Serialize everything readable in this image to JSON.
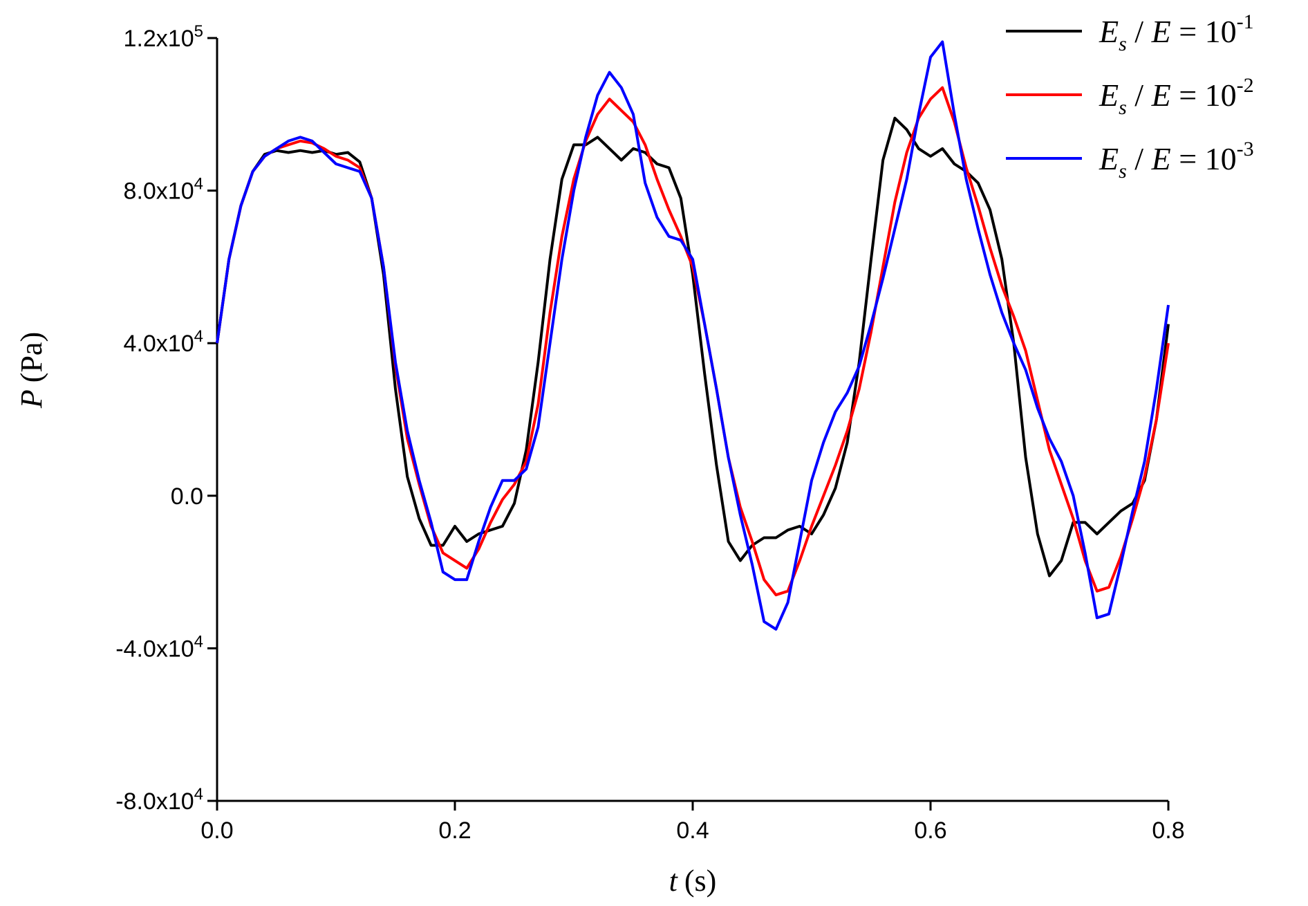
{
  "chart_data": {
    "type": "line",
    "xlabel": {
      "var": "t",
      "unit": "(s)"
    },
    "ylabel": {
      "var": "P",
      "unit": "(Pa)"
    },
    "xlim": [
      0,
      0.8
    ],
    "ylim": [
      -80000,
      120000
    ],
    "grid": false,
    "legend_placement": "top-right",
    "x_ticks": [
      {
        "value": 0.0,
        "label": "0.0"
      },
      {
        "value": 0.2,
        "label": "0.2"
      },
      {
        "value": 0.4,
        "label": "0.4"
      },
      {
        "value": 0.6,
        "label": "0.6"
      },
      {
        "value": 0.8,
        "label": "0.8"
      }
    ],
    "y_ticks": [
      {
        "value": 120000,
        "label": "1.2x10",
        "exp": "5"
      },
      {
        "value": 80000,
        "label": "8.0x10",
        "exp": "4"
      },
      {
        "value": 40000,
        "label": "4.0x10",
        "exp": "4"
      },
      {
        "value": 0,
        "label": "0.0",
        "exp": ""
      },
      {
        "value": -40000,
        "label": "-4.0x10",
        "exp": "4"
      },
      {
        "value": -80000,
        "label": "-8.0x10",
        "exp": "4"
      }
    ],
    "series": [
      {
        "name": "E_s / E = 10^-1",
        "legend": {
          "a": "E",
          "sub": "s",
          "mid": " / E = 10",
          "exp": "-1"
        },
        "color": "#000000",
        "points": [
          [
            0.0,
            40000
          ],
          [
            0.01,
            62000
          ],
          [
            0.02,
            76000
          ],
          [
            0.03,
            85000
          ],
          [
            0.04,
            89500
          ],
          [
            0.05,
            90500
          ],
          [
            0.06,
            90000
          ],
          [
            0.07,
            90500
          ],
          [
            0.08,
            90000
          ],
          [
            0.09,
            90500
          ],
          [
            0.1,
            89500
          ],
          [
            0.11,
            90000
          ],
          [
            0.12,
            87500
          ],
          [
            0.13,
            78000
          ],
          [
            0.14,
            58000
          ],
          [
            0.15,
            28000
          ],
          [
            0.16,
            5000
          ],
          [
            0.17,
            -6000
          ],
          [
            0.18,
            -13000
          ],
          [
            0.19,
            -13000
          ],
          [
            0.2,
            -8000
          ],
          [
            0.21,
            -12000
          ],
          [
            0.22,
            -10000
          ],
          [
            0.23,
            -9000
          ],
          [
            0.24,
            -8000
          ],
          [
            0.25,
            -2000
          ],
          [
            0.26,
            12000
          ],
          [
            0.27,
            35000
          ],
          [
            0.28,
            62000
          ],
          [
            0.29,
            83000
          ],
          [
            0.3,
            92000
          ],
          [
            0.31,
            92000
          ],
          [
            0.32,
            94000
          ],
          [
            0.33,
            91000
          ],
          [
            0.34,
            88000
          ],
          [
            0.35,
            91000
          ],
          [
            0.36,
            90000
          ],
          [
            0.37,
            87000
          ],
          [
            0.38,
            86000
          ],
          [
            0.39,
            78000
          ],
          [
            0.4,
            58000
          ],
          [
            0.41,
            32000
          ],
          [
            0.42,
            8000
          ],
          [
            0.43,
            -12000
          ],
          [
            0.44,
            -17000
          ],
          [
            0.45,
            -13000
          ],
          [
            0.46,
            -11000
          ],
          [
            0.47,
            -11000
          ],
          [
            0.48,
            -9000
          ],
          [
            0.49,
            -8000
          ],
          [
            0.5,
            -10000
          ],
          [
            0.51,
            -5000
          ],
          [
            0.52,
            2000
          ],
          [
            0.53,
            14000
          ],
          [
            0.54,
            35000
          ],
          [
            0.55,
            62000
          ],
          [
            0.56,
            88000
          ],
          [
            0.57,
            99000
          ],
          [
            0.58,
            96000
          ],
          [
            0.59,
            91000
          ],
          [
            0.6,
            89000
          ],
          [
            0.61,
            91000
          ],
          [
            0.62,
            87000
          ],
          [
            0.63,
            85000
          ],
          [
            0.64,
            82000
          ],
          [
            0.65,
            75000
          ],
          [
            0.66,
            62000
          ],
          [
            0.67,
            40000
          ],
          [
            0.68,
            10000
          ],
          [
            0.69,
            -10000
          ],
          [
            0.7,
            -21000
          ],
          [
            0.71,
            -17000
          ],
          [
            0.72,
            -7000
          ],
          [
            0.73,
            -7000
          ],
          [
            0.74,
            -10000
          ],
          [
            0.75,
            -7000
          ],
          [
            0.76,
            -4000
          ],
          [
            0.77,
            -2000
          ],
          [
            0.78,
            4000
          ],
          [
            0.79,
            20000
          ],
          [
            0.8,
            45000
          ]
        ]
      },
      {
        "name": "E_s / E = 10^-2",
        "legend": {
          "a": "E",
          "sub": "s",
          "mid": " / E = 10",
          "exp": "-2"
        },
        "color": "#ff0000",
        "points": [
          [
            0.0,
            40000
          ],
          [
            0.01,
            62000
          ],
          [
            0.02,
            76000
          ],
          [
            0.03,
            85000
          ],
          [
            0.04,
            89000
          ],
          [
            0.05,
            91000
          ],
          [
            0.06,
            92000
          ],
          [
            0.07,
            93000
          ],
          [
            0.08,
            92500
          ],
          [
            0.09,
            91000
          ],
          [
            0.1,
            89000
          ],
          [
            0.11,
            88000
          ],
          [
            0.12,
            86000
          ],
          [
            0.13,
            78000
          ],
          [
            0.14,
            60000
          ],
          [
            0.15,
            34000
          ],
          [
            0.16,
            15000
          ],
          [
            0.17,
            3000
          ],
          [
            0.18,
            -8000
          ],
          [
            0.19,
            -15000
          ],
          [
            0.2,
            -17000
          ],
          [
            0.21,
            -19000
          ],
          [
            0.22,
            -14000
          ],
          [
            0.23,
            -7000
          ],
          [
            0.24,
            -1000
          ],
          [
            0.25,
            3000
          ],
          [
            0.26,
            9000
          ],
          [
            0.27,
            24000
          ],
          [
            0.28,
            48000
          ],
          [
            0.29,
            68000
          ],
          [
            0.3,
            83000
          ],
          [
            0.31,
            93000
          ],
          [
            0.32,
            100000
          ],
          [
            0.33,
            104000
          ],
          [
            0.34,
            101000
          ],
          [
            0.35,
            98000
          ],
          [
            0.36,
            92000
          ],
          [
            0.37,
            83000
          ],
          [
            0.38,
            75000
          ],
          [
            0.39,
            68000
          ],
          [
            0.4,
            60000
          ],
          [
            0.41,
            45000
          ],
          [
            0.42,
            28000
          ],
          [
            0.43,
            10000
          ],
          [
            0.44,
            -3000
          ],
          [
            0.45,
            -12000
          ],
          [
            0.46,
            -22000
          ],
          [
            0.47,
            -26000
          ],
          [
            0.48,
            -25000
          ],
          [
            0.49,
            -17000
          ],
          [
            0.5,
            -8000
          ],
          [
            0.51,
            0
          ],
          [
            0.52,
            8000
          ],
          [
            0.53,
            17000
          ],
          [
            0.54,
            28000
          ],
          [
            0.55,
            43000
          ],
          [
            0.56,
            60000
          ],
          [
            0.57,
            77000
          ],
          [
            0.58,
            90000
          ],
          [
            0.59,
            99000
          ],
          [
            0.6,
            104000
          ],
          [
            0.61,
            107000
          ],
          [
            0.62,
            98000
          ],
          [
            0.63,
            86000
          ],
          [
            0.64,
            76000
          ],
          [
            0.65,
            65000
          ],
          [
            0.66,
            55000
          ],
          [
            0.67,
            47000
          ],
          [
            0.68,
            38000
          ],
          [
            0.69,
            25000
          ],
          [
            0.7,
            12000
          ],
          [
            0.71,
            3000
          ],
          [
            0.72,
            -6000
          ],
          [
            0.73,
            -17000
          ],
          [
            0.74,
            -25000
          ],
          [
            0.75,
            -24000
          ],
          [
            0.76,
            -16000
          ],
          [
            0.77,
            -6000
          ],
          [
            0.78,
            5000
          ],
          [
            0.79,
            20000
          ],
          [
            0.8,
            40000
          ]
        ]
      },
      {
        "name": "E_s / E = 10^-3",
        "legend": {
          "a": "E",
          "sub": "s",
          "mid": " / E = 10",
          "exp": "-3"
        },
        "color": "#0000ff",
        "points": [
          [
            0.0,
            40000
          ],
          [
            0.01,
            62000
          ],
          [
            0.02,
            76000
          ],
          [
            0.03,
            85000
          ],
          [
            0.04,
            89000
          ],
          [
            0.05,
            91000
          ],
          [
            0.06,
            93000
          ],
          [
            0.07,
            94000
          ],
          [
            0.08,
            93000
          ],
          [
            0.09,
            90000
          ],
          [
            0.1,
            87000
          ],
          [
            0.11,
            86000
          ],
          [
            0.12,
            85000
          ],
          [
            0.13,
            78000
          ],
          [
            0.14,
            60000
          ],
          [
            0.15,
            35000
          ],
          [
            0.16,
            17000
          ],
          [
            0.17,
            4000
          ],
          [
            0.18,
            -7000
          ],
          [
            0.19,
            -20000
          ],
          [
            0.2,
            -22000
          ],
          [
            0.21,
            -22000
          ],
          [
            0.22,
            -12000
          ],
          [
            0.23,
            -3000
          ],
          [
            0.24,
            4000
          ],
          [
            0.25,
            4000
          ],
          [
            0.26,
            7000
          ],
          [
            0.27,
            18000
          ],
          [
            0.28,
            40000
          ],
          [
            0.29,
            62000
          ],
          [
            0.3,
            80000
          ],
          [
            0.31,
            94000
          ],
          [
            0.32,
            105000
          ],
          [
            0.33,
            111000
          ],
          [
            0.34,
            107000
          ],
          [
            0.35,
            100000
          ],
          [
            0.36,
            82000
          ],
          [
            0.37,
            73000
          ],
          [
            0.38,
            68000
          ],
          [
            0.39,
            67000
          ],
          [
            0.4,
            62000
          ],
          [
            0.41,
            45000
          ],
          [
            0.42,
            28000
          ],
          [
            0.43,
            10000
          ],
          [
            0.44,
            -5000
          ],
          [
            0.45,
            -18000
          ],
          [
            0.46,
            -33000
          ],
          [
            0.47,
            -35000
          ],
          [
            0.48,
            -28000
          ],
          [
            0.49,
            -12000
          ],
          [
            0.5,
            4000
          ],
          [
            0.51,
            14000
          ],
          [
            0.52,
            22000
          ],
          [
            0.53,
            27000
          ],
          [
            0.54,
            34000
          ],
          [
            0.55,
            45000
          ],
          [
            0.56,
            57000
          ],
          [
            0.57,
            70000
          ],
          [
            0.58,
            83000
          ],
          [
            0.59,
            100000
          ],
          [
            0.6,
            115000
          ],
          [
            0.61,
            119000
          ],
          [
            0.62,
            100000
          ],
          [
            0.63,
            83000
          ],
          [
            0.64,
            70000
          ],
          [
            0.65,
            58000
          ],
          [
            0.66,
            48000
          ],
          [
            0.67,
            40000
          ],
          [
            0.68,
            33000
          ],
          [
            0.69,
            23000
          ],
          [
            0.7,
            15000
          ],
          [
            0.71,
            9000
          ],
          [
            0.72,
            0
          ],
          [
            0.73,
            -15000
          ],
          [
            0.74,
            -32000
          ],
          [
            0.75,
            -31000
          ],
          [
            0.76,
            -18000
          ],
          [
            0.77,
            -4000
          ],
          [
            0.78,
            9000
          ],
          [
            0.79,
            28000
          ],
          [
            0.8,
            50000
          ]
        ]
      }
    ]
  }
}
